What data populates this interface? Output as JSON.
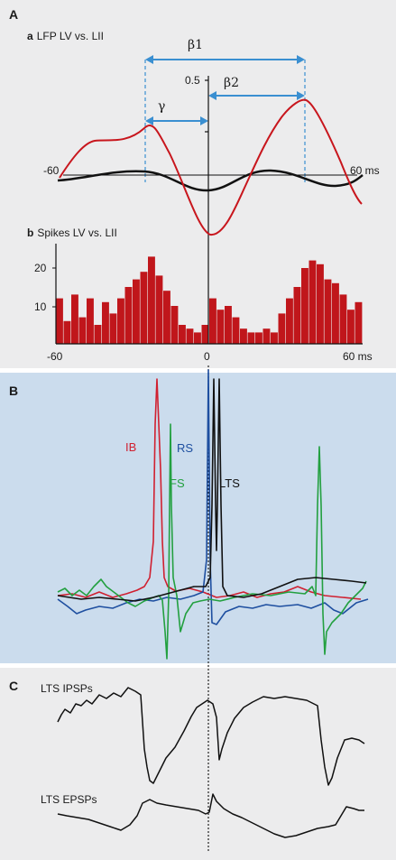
{
  "panel_a": {
    "label": "A",
    "sub_a": {
      "letter": "a",
      "title": "LFP LV vs. LII"
    },
    "sub_b": {
      "letter": "b",
      "title": "Spikes LV vs. LII"
    },
    "annotations": {
      "beta1": "β1",
      "beta2": "β2",
      "gamma": "γ",
      "scale": "0.5"
    },
    "lfp_axis": {
      "left": "-60",
      "right": "60 ms"
    },
    "spike_axis": {
      "y_ticks": [
        "20",
        "10"
      ],
      "x_ticks": [
        "-60",
        "0",
        "60 ms"
      ]
    },
    "colors": {
      "lfp": "#c8161d",
      "lfp_baseline": "#111111",
      "bars": "#c0161b",
      "arrows": "#3a8fd1"
    }
  },
  "panel_b": {
    "label": "B",
    "labels": {
      "ib": "IB",
      "rs": "RS",
      "fs": "FS",
      "lts": "LTS"
    },
    "colors": {
      "background": "#cbdced",
      "ib": "#d02030",
      "rs": "#1e4fa0",
      "fs": "#23a040",
      "lts": "#111111"
    }
  },
  "panel_c": {
    "label": "C",
    "labels": {
      "ipsp": "LTS IPSPs",
      "epsp": "LTS EPSPs"
    }
  },
  "chart_data": [
    {
      "type": "line",
      "title": "LFP LV vs. LII",
      "x_range": [
        -60,
        60
      ],
      "x_unit": "ms",
      "series": [
        {
          "x": [
            -60,
            -50,
            -40,
            -30,
            -25,
            -20,
            -10,
            0,
            5,
            10,
            20,
            30,
            40,
            45,
            50,
            60
          ],
          "y": [
            0.05,
            0.25,
            0.3,
            0.45,
            0.5,
            0.35,
            0.05,
            -0.3,
            -0.27,
            -0.2,
            0.05,
            0.4,
            0.7,
            0.72,
            0.5,
            -0.1
          ]
        },
        {
          "x": [
            -60,
            -50,
            -40,
            -30,
            -20,
            -10,
            0,
            10,
            20,
            30,
            40,
            50,
            60
          ],
          "y": [
            0,
            0.02,
            0.05,
            0.07,
            0.05,
            0.02,
            -0.03,
            -0.05,
            -0.02,
            0.03,
            0.06,
            0.04,
            0
          ]
        }
      ]
    },
    {
      "type": "bar",
      "title": "Spikes LV vs. LII",
      "x_range": [
        -60,
        60
      ],
      "ylim": [
        0,
        25
      ],
      "x": [
        -60,
        -57,
        -54,
        -51,
        -48,
        -45,
        -42,
        -39,
        -36,
        -33,
        -30,
        -27,
        -24,
        -21,
        -18,
        -15,
        -12,
        -9,
        -6,
        -3,
        0,
        3,
        6,
        9,
        12,
        15,
        18,
        21,
        24,
        27,
        30,
        33,
        36,
        39,
        42,
        45,
        48,
        51,
        54,
        57
      ],
      "values": [
        12,
        6,
        13,
        7,
        12,
        5,
        11,
        8,
        12,
        15,
        17,
        19,
        23,
        18,
        14,
        10,
        5,
        4,
        3,
        5,
        12,
        9,
        10,
        7,
        4,
        3,
        3,
        4,
        3,
        8,
        12,
        15,
        20,
        22,
        21,
        17,
        16,
        13,
        9,
        11
      ]
    }
  ]
}
